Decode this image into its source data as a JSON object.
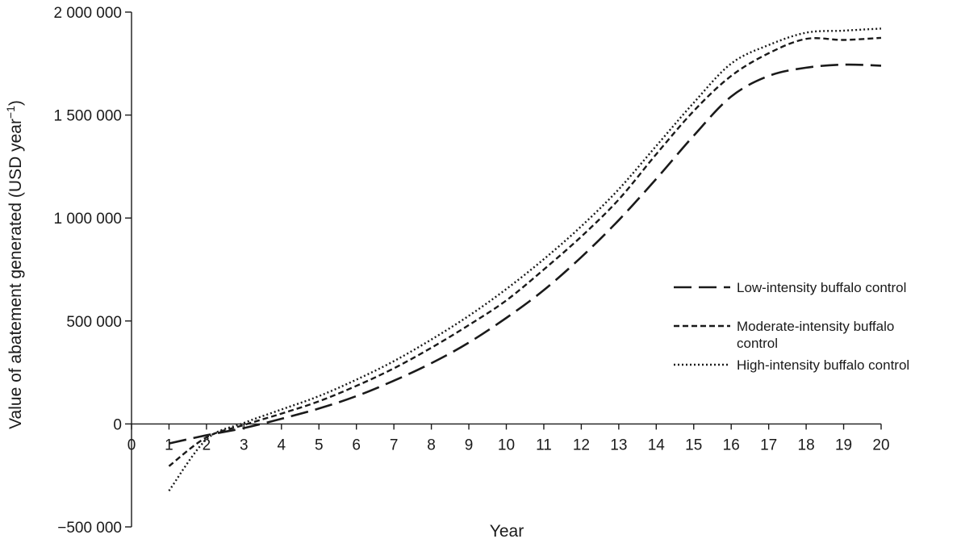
{
  "chart_data": {
    "type": "line",
    "xlabel": "Year",
    "ylabel": "Value of abatement generated (USD year",
    "ylabel_sup": "−1",
    "ylabel_close": ")",
    "xlim": [
      0,
      20
    ],
    "ylim": [
      -500000,
      2000000
    ],
    "x_ticks": [
      0,
      1,
      2,
      3,
      4,
      5,
      6,
      7,
      8,
      9,
      10,
      11,
      12,
      13,
      14,
      15,
      16,
      17,
      18,
      19,
      20
    ],
    "x_tick_labels": [
      "0",
      "1",
      "2",
      "3",
      "4",
      "5",
      "6",
      "7",
      "8",
      "9",
      "10",
      "11",
      "12",
      "13",
      "14",
      "15",
      "16",
      "17",
      "18",
      "19",
      "20"
    ],
    "y_ticks": [
      -500000,
      0,
      500000,
      1000000,
      1500000,
      2000000
    ],
    "y_tick_labels": [
      "−500 000",
      "0",
      "500 000",
      "1 000 000",
      "1 500 000",
      "2 000 000"
    ],
    "grid": false,
    "legend_position": "right",
    "x": [
      1,
      2,
      3,
      4,
      5,
      6,
      7,
      8,
      9,
      10,
      11,
      12,
      13,
      14,
      15,
      16,
      17,
      18,
      19,
      20
    ],
    "series": [
      {
        "name": "Low-intensity buffalo control",
        "style": "dashed",
        "values": [
          -95000,
          -55000,
          -20000,
          25000,
          75000,
          135000,
          210000,
          295000,
          395000,
          515000,
          650000,
          810000,
          990000,
          1190000,
          1400000,
          1590000,
          1690000,
          1730000,
          1745000,
          1740000
        ]
      },
      {
        "name": "Moderate-intensity buffalo control",
        "name_lines": [
          "Moderate-intensity buffalo",
          "control"
        ],
        "style": "short-dashed",
        "values": [
          -205000,
          -65000,
          -5000,
          50000,
          110000,
          185000,
          270000,
          370000,
          480000,
          600000,
          750000,
          910000,
          1090000,
          1310000,
          1520000,
          1690000,
          1800000,
          1870000,
          1865000,
          1875000
        ]
      },
      {
        "name": "High-intensity buffalo control",
        "style": "dotted",
        "values": [
          -325000,
          -75000,
          5000,
          70000,
          135000,
          215000,
          305000,
          410000,
          525000,
          655000,
          800000,
          960000,
          1140000,
          1350000,
          1560000,
          1750000,
          1840000,
          1900000,
          1910000,
          1920000
        ]
      }
    ],
    "line_color": "#1a1a1a"
  }
}
